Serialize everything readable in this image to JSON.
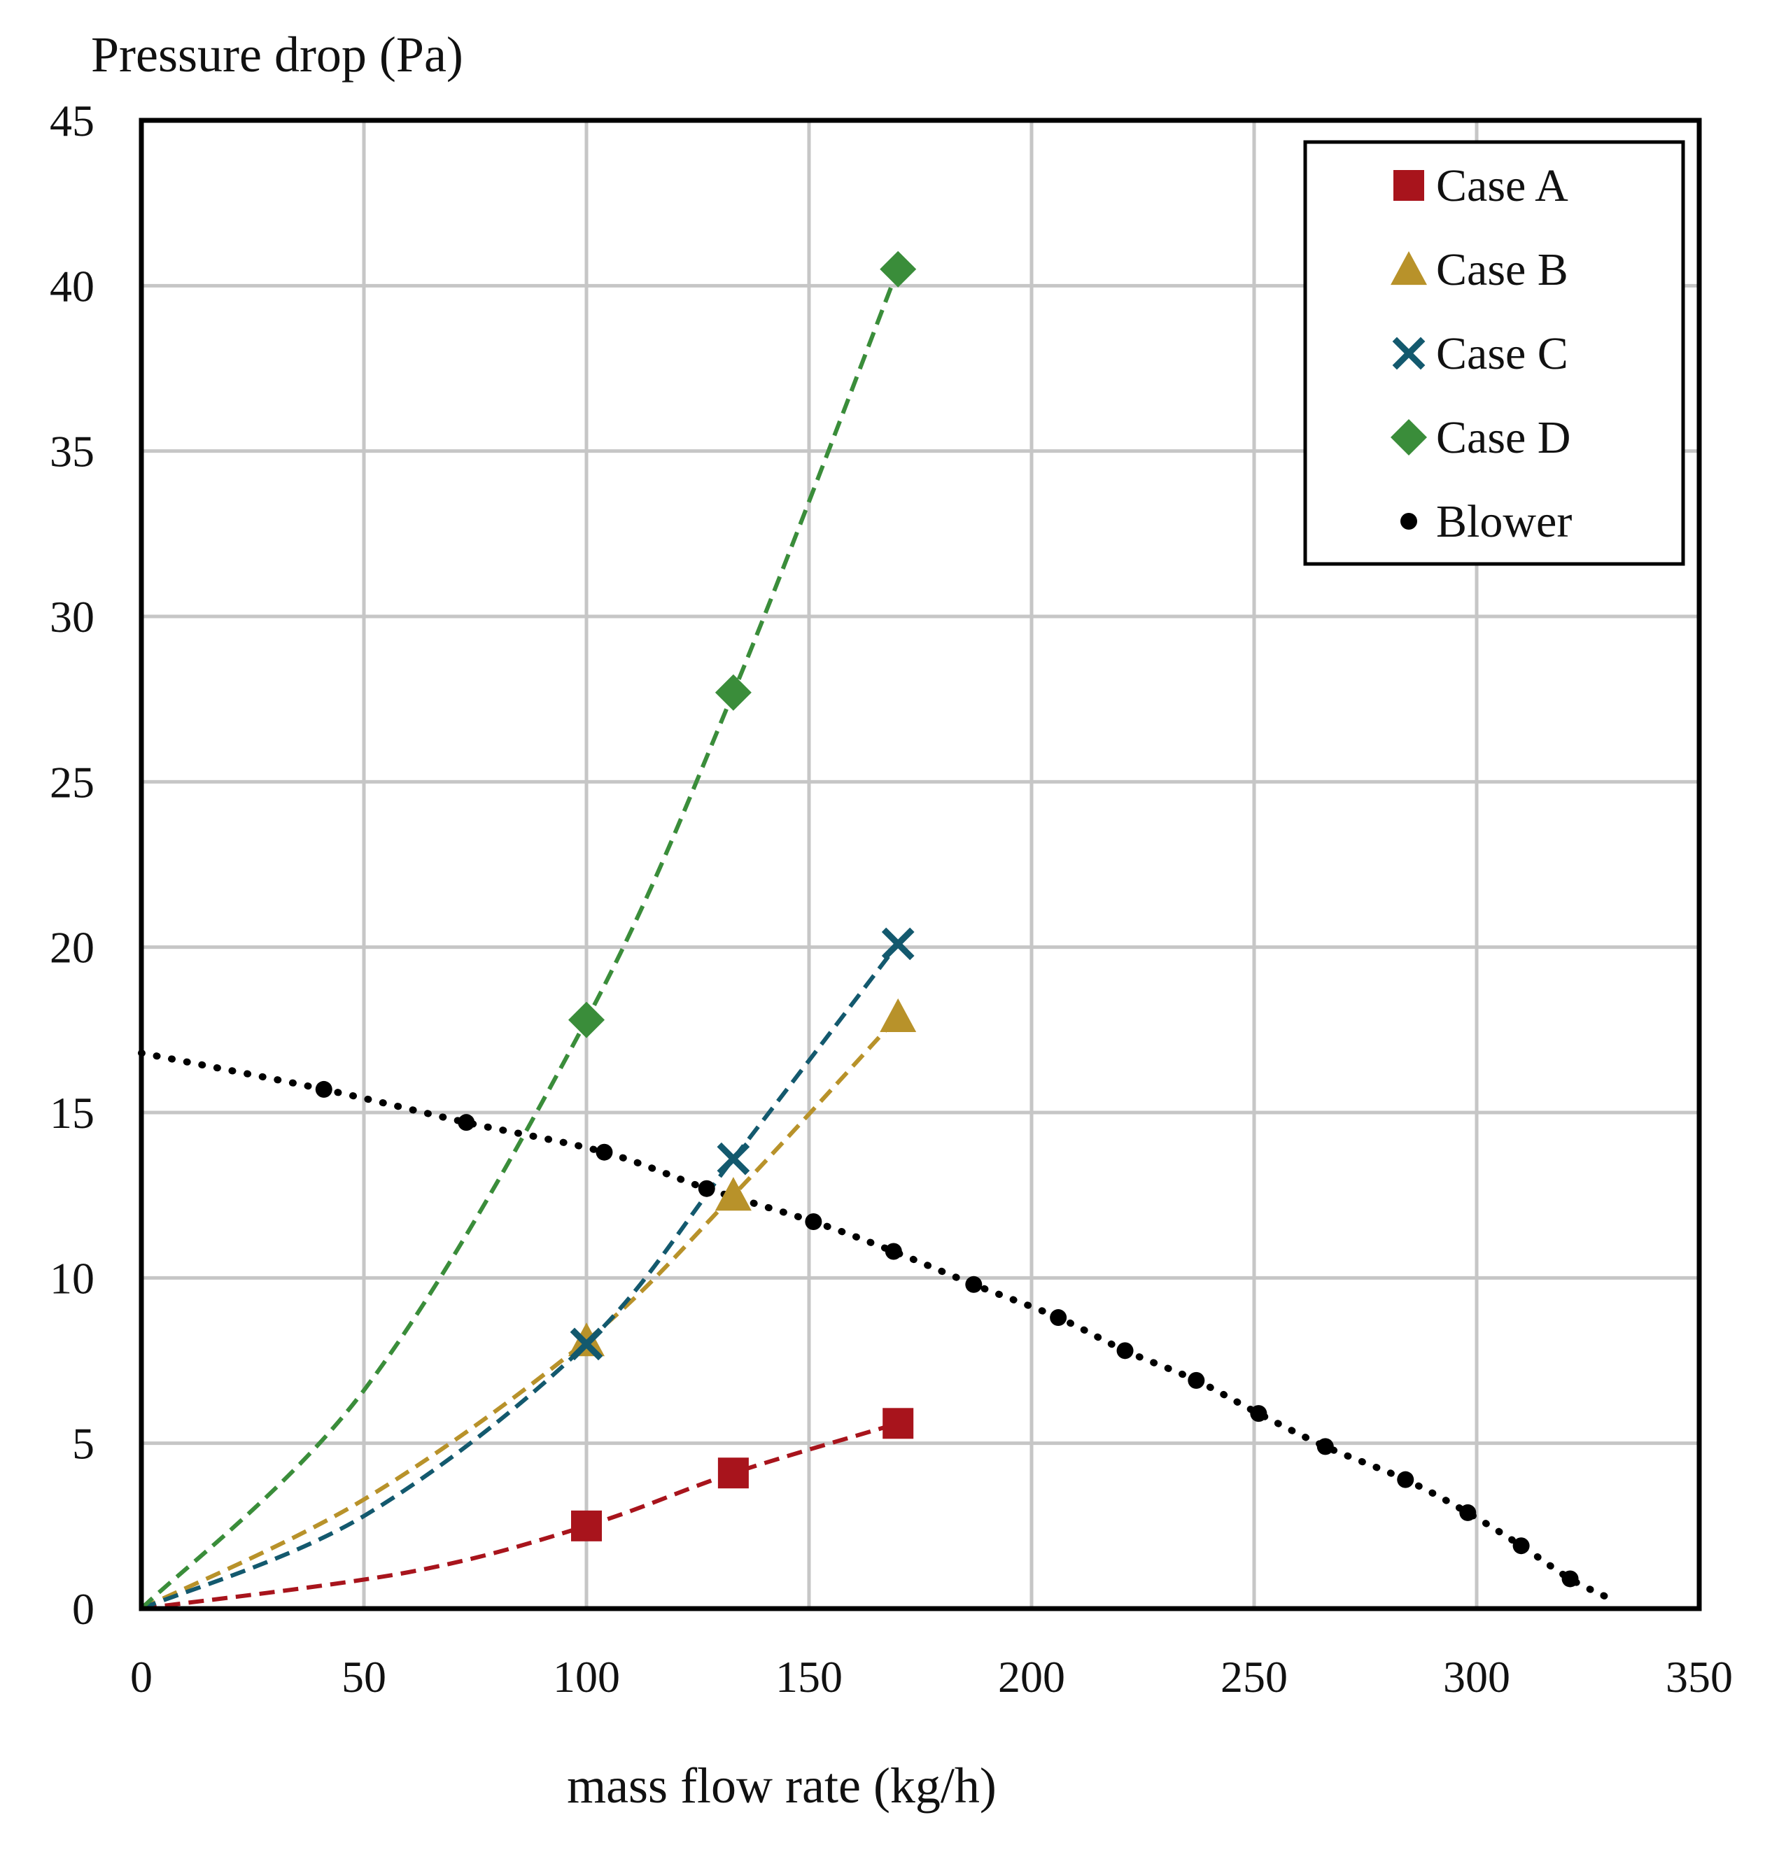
{
  "chart_data": {
    "type": "scatter",
    "ylabel": "Pressure drop (Pa)",
    "xlabel": "mass flow rate (kg/h)",
    "xlim": [
      0,
      350
    ],
    "ylim": [
      0,
      45
    ],
    "xticks": [
      0,
      50,
      100,
      150,
      200,
      250,
      300,
      350
    ],
    "yticks": [
      0,
      5,
      10,
      15,
      20,
      25,
      30,
      35,
      40,
      45
    ],
    "grid": true,
    "legend_position": "top-right",
    "series": [
      {
        "name": "Case A",
        "marker": "square",
        "color": "#a8141c",
        "x": [
          100,
          133,
          170
        ],
        "y": [
          2.5,
          4.1,
          5.6
        ],
        "trend": "dashed",
        "trend_points": [
          [
            0,
            0
          ],
          [
            60,
            1.1
          ],
          [
            100,
            2.5
          ],
          [
            133,
            4.1
          ],
          [
            170,
            5.6
          ]
        ]
      },
      {
        "name": "Case B",
        "marker": "triangle",
        "color": "#b8922a",
        "x": [
          100,
          133,
          170
        ],
        "y": [
          8.1,
          12.5,
          17.9
        ],
        "trend": "dashed",
        "trend_points": [
          [
            0,
            0
          ],
          [
            50,
            3.3
          ],
          [
            100,
            8.1
          ],
          [
            133,
            12.5
          ],
          [
            170,
            17.9
          ]
        ]
      },
      {
        "name": "Case C",
        "marker": "x",
        "color": "#13596e",
        "x": [
          100,
          133,
          170
        ],
        "y": [
          8.0,
          13.6,
          20.1
        ],
        "trend": "dashed",
        "trend_points": [
          [
            0,
            0
          ],
          [
            50,
            2.8
          ],
          [
            100,
            8.0
          ],
          [
            133,
            13.6
          ],
          [
            170,
            20.1
          ]
        ]
      },
      {
        "name": "Case D",
        "marker": "diamond",
        "color": "#3a8d3a",
        "x": [
          100,
          133,
          170
        ],
        "y": [
          17.8,
          27.7,
          40.5
        ],
        "trend": "dashed",
        "trend_points": [
          [
            0,
            0
          ],
          [
            50,
            6.6
          ],
          [
            100,
            17.8
          ],
          [
            133,
            27.7
          ],
          [
            170,
            40.5
          ]
        ]
      },
      {
        "name": "Blower",
        "marker": "circle",
        "color": "#000000",
        "x": [
          41,
          73,
          104,
          127,
          151,
          169,
          187,
          206,
          221,
          237,
          251,
          266,
          284,
          298,
          310,
          321
        ],
        "y": [
          15.7,
          14.7,
          13.8,
          12.7,
          11.7,
          10.8,
          9.8,
          8.8,
          7.8,
          6.9,
          5.9,
          4.9,
          3.9,
          2.9,
          1.9,
          0.9
        ],
        "trend": "dotted",
        "trend_points": [
          [
            0,
            16.8
          ],
          [
            41,
            15.7
          ],
          [
            73,
            14.7
          ],
          [
            104,
            13.8
          ],
          [
            127,
            12.7
          ],
          [
            151,
            11.7
          ],
          [
            169,
            10.8
          ],
          [
            187,
            9.8
          ],
          [
            206,
            8.8
          ],
          [
            221,
            7.8
          ],
          [
            237,
            6.9
          ],
          [
            251,
            5.9
          ],
          [
            266,
            4.9
          ],
          [
            284,
            3.9
          ],
          [
            298,
            2.9
          ],
          [
            310,
            1.9
          ],
          [
            321,
            0.9
          ],
          [
            330,
            0.3
          ]
        ]
      }
    ]
  }
}
